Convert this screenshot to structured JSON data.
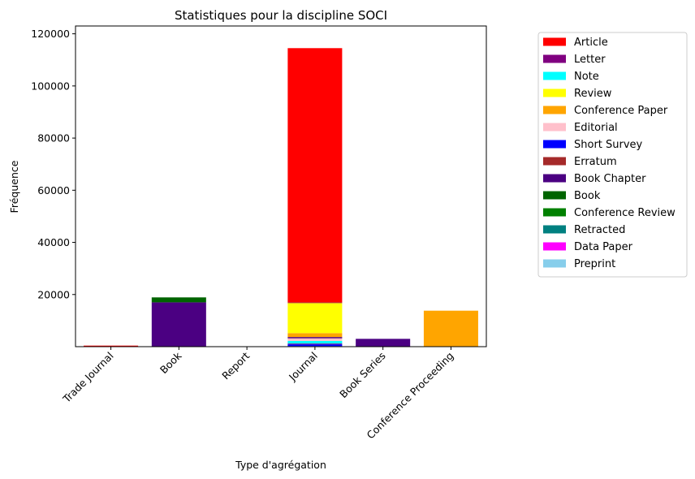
{
  "chart_data": {
    "type": "bar",
    "stacked": true,
    "title": "Statistiques pour la discipline SOCI",
    "xlabel": "Type d'agrégation",
    "ylabel": "Fréquence",
    "ylim": [
      0,
      123000
    ],
    "yticks": [
      20000,
      40000,
      60000,
      80000,
      100000,
      120000
    ],
    "categories": [
      "Trade Journal",
      "Book",
      "Report",
      "Journal",
      "Book Series",
      "Conference Proceeding"
    ],
    "legend_position": "outside-right",
    "series": [
      {
        "name": "Article",
        "color": "#ff0000",
        "values": [
          300,
          0,
          0,
          97500,
          0,
          0
        ]
      },
      {
        "name": "Letter",
        "color": "#800080",
        "values": [
          0,
          0,
          0,
          300,
          0,
          0
        ]
      },
      {
        "name": "Note",
        "color": "#00ffff",
        "values": [
          0,
          0,
          0,
          1000,
          0,
          0
        ]
      },
      {
        "name": "Review",
        "color": "#ffff00",
        "values": [
          0,
          0,
          0,
          11500,
          0,
          0
        ]
      },
      {
        "name": "Conference Paper",
        "color": "#ffa500",
        "values": [
          0,
          0,
          0,
          1500,
          0,
          13800
        ]
      },
      {
        "name": "Editorial",
        "color": "#ffc0cb",
        "values": [
          0,
          0,
          0,
          1000,
          0,
          0
        ]
      },
      {
        "name": "Short Survey",
        "color": "#0000ff",
        "values": [
          0,
          0,
          0,
          700,
          0,
          0
        ]
      },
      {
        "name": "Erratum",
        "color": "#a52a2a",
        "values": [
          100,
          0,
          0,
          300,
          0,
          0
        ]
      },
      {
        "name": "Book Chapter",
        "color": "#4b0082",
        "values": [
          0,
          17000,
          0,
          500,
          3000,
          0
        ]
      },
      {
        "name": "Book",
        "color": "#006400",
        "values": [
          0,
          1900,
          0,
          0,
          0,
          0
        ]
      },
      {
        "name": "Conference Review",
        "color": "#008000",
        "values": [
          0,
          0,
          0,
          50,
          0,
          0
        ]
      },
      {
        "name": "Retracted",
        "color": "#008080",
        "values": [
          0,
          0,
          0,
          50,
          0,
          0
        ]
      },
      {
        "name": "Data Paper",
        "color": "#ff00ff",
        "values": [
          0,
          0,
          0,
          50,
          0,
          0
        ]
      },
      {
        "name": "Preprint",
        "color": "#87ceeb",
        "values": [
          0,
          0,
          0,
          50,
          0,
          0
        ]
      }
    ],
    "stack_order": [
      "Preprint",
      "Data Paper",
      "Retracted",
      "Conference Review",
      "Short Survey",
      "Letter",
      "Note",
      "Editorial",
      "Book Chapter",
      "Conference Paper",
      "Review",
      "Erratum",
      "Book",
      "Article"
    ]
  }
}
